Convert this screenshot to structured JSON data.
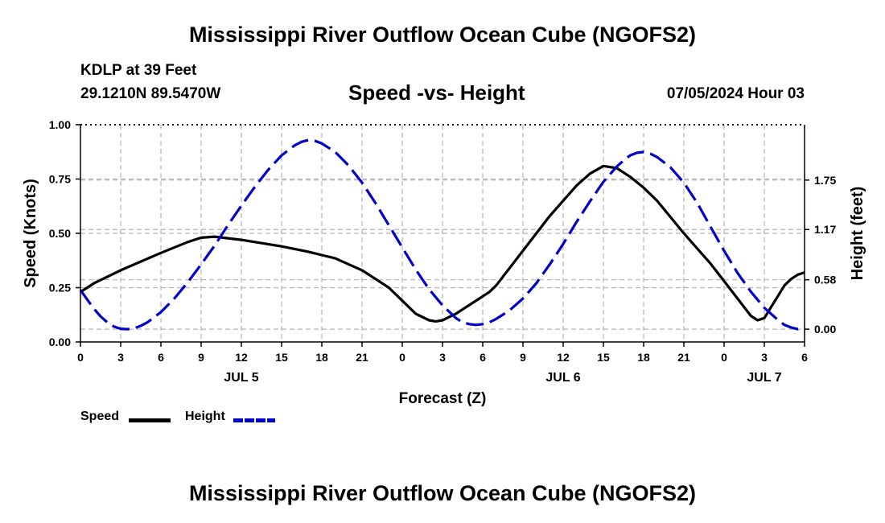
{
  "page": {
    "title_top": "Mississippi River Outflow Ocean Cube (NGOFS2)",
    "title_bottom": "Mississippi River Outflow Ocean Cube (NGOFS2)",
    "station": "KDLP at 39 Feet",
    "coords": "29.1210N  89.5470W",
    "subtitle": "Speed -vs- Height",
    "datetime": "07/05/2024 Hour 03"
  },
  "chart_data": {
    "type": "line",
    "xlabel": "Forecast (Z)",
    "ylabel_left": "Speed (Knots)",
    "ylabel_right": "Height (feet)",
    "x_range": [
      0,
      54
    ],
    "ylim_left": [
      0,
      1.0
    ],
    "ylim_right": [
      -0.15,
      2.4
    ],
    "grid": true,
    "x_tick_values": [
      0,
      3,
      6,
      9,
      12,
      15,
      18,
      21,
      24,
      27,
      30,
      33,
      36,
      39,
      42,
      45,
      48,
      51,
      54
    ],
    "x_tick_labels": [
      "0",
      "3",
      "6",
      "9",
      "12",
      "15",
      "18",
      "21",
      "0",
      "3",
      "6",
      "9",
      "12",
      "15",
      "18",
      "21",
      "0",
      "3",
      "6"
    ],
    "day_labels": [
      {
        "x": 12,
        "label": "JUL 5"
      },
      {
        "x": 36,
        "label": "JUL 6"
      },
      {
        "x": 51,
        "label": "JUL 7"
      }
    ],
    "left_ticks": [
      {
        "value": 0.0,
        "label": "0.00"
      },
      {
        "value": 0.25,
        "label": "0.25"
      },
      {
        "value": 0.5,
        "label": "0.50"
      },
      {
        "value": 0.75,
        "label": "0.75"
      },
      {
        "value": 1.0,
        "label": "1.00"
      }
    ],
    "right_ticks": [
      {
        "value": 0.0,
        "label": "0.00"
      },
      {
        "value": 0.58,
        "label": "0.58"
      },
      {
        "value": 1.17,
        "label": "1.17"
      },
      {
        "value": 1.75,
        "label": "1.75"
      }
    ],
    "legend": [
      {
        "name": "Speed",
        "color": "#000000",
        "dash": false
      },
      {
        "name": "Height",
        "color": "#0000cc",
        "dash": true
      }
    ],
    "series": [
      {
        "name": "Speed",
        "axis": "left",
        "color": "#000000",
        "points": [
          [
            0,
            0.23
          ],
          [
            1,
            0.27
          ],
          [
            3,
            0.33
          ],
          [
            6,
            0.41
          ],
          [
            8,
            0.46
          ],
          [
            9,
            0.48
          ],
          [
            10,
            0.485
          ],
          [
            12,
            0.47
          ],
          [
            15,
            0.44
          ],
          [
            17,
            0.415
          ],
          [
            18,
            0.4
          ],
          [
            19,
            0.385
          ],
          [
            21,
            0.33
          ],
          [
            22,
            0.29
          ],
          [
            23,
            0.25
          ],
          [
            24,
            0.19
          ],
          [
            25,
            0.13
          ],
          [
            26,
            0.1
          ],
          [
            26.5,
            0.095
          ],
          [
            27,
            0.1
          ],
          [
            28,
            0.13
          ],
          [
            29,
            0.17
          ],
          [
            30,
            0.21
          ],
          [
            30.5,
            0.23
          ],
          [
            31,
            0.26
          ],
          [
            33,
            0.42
          ],
          [
            35,
            0.58
          ],
          [
            37,
            0.72
          ],
          [
            38,
            0.775
          ],
          [
            39,
            0.81
          ],
          [
            40,
            0.8
          ],
          [
            41,
            0.76
          ],
          [
            42,
            0.71
          ],
          [
            43,
            0.65
          ],
          [
            45,
            0.5
          ],
          [
            47,
            0.36
          ],
          [
            49,
            0.2
          ],
          [
            50,
            0.12
          ],
          [
            50.5,
            0.1
          ],
          [
            51,
            0.11
          ],
          [
            51.5,
            0.16
          ],
          [
            52,
            0.21
          ],
          [
            52.5,
            0.26
          ],
          [
            53,
            0.29
          ],
          [
            53.5,
            0.31
          ],
          [
            54,
            0.32
          ]
        ]
      },
      {
        "name": "Height",
        "axis": "right",
        "color": "#0000cc",
        "points": [
          [
            0,
            0.46
          ],
          [
            0.5,
            0.35
          ],
          [
            1,
            0.24
          ],
          [
            1.5,
            0.15
          ],
          [
            2,
            0.08
          ],
          [
            2.5,
            0.03
          ],
          [
            3,
            0.005
          ],
          [
            3.5,
            0.0
          ],
          [
            4,
            0.01
          ],
          [
            4.5,
            0.04
          ],
          [
            5,
            0.08
          ],
          [
            6,
            0.2
          ],
          [
            7,
            0.36
          ],
          [
            8,
            0.55
          ],
          [
            9,
            0.76
          ],
          [
            10,
            0.98
          ],
          [
            11,
            1.22
          ],
          [
            12,
            1.45
          ],
          [
            13,
            1.67
          ],
          [
            14,
            1.87
          ],
          [
            15,
            2.04
          ],
          [
            16,
            2.16
          ],
          [
            16.5,
            2.2
          ],
          [
            17,
            2.22
          ],
          [
            17.5,
            2.21
          ],
          [
            18,
            2.18
          ],
          [
            19,
            2.08
          ],
          [
            20,
            1.92
          ],
          [
            21,
            1.72
          ],
          [
            22,
            1.48
          ],
          [
            23,
            1.22
          ],
          [
            24,
            0.96
          ],
          [
            25,
            0.7
          ],
          [
            26,
            0.47
          ],
          [
            27,
            0.28
          ],
          [
            28,
            0.13
          ],
          [
            28.5,
            0.08
          ],
          [
            29,
            0.06
          ],
          [
            29.5,
            0.05
          ],
          [
            30,
            0.06
          ],
          [
            30.5,
            0.08
          ],
          [
            31,
            0.12
          ],
          [
            32,
            0.22
          ],
          [
            33,
            0.36
          ],
          [
            34,
            0.54
          ],
          [
            35,
            0.76
          ],
          [
            36,
            1.0
          ],
          [
            37,
            1.26
          ],
          [
            38,
            1.5
          ],
          [
            39,
            1.73
          ],
          [
            40,
            1.91
          ],
          [
            40.5,
            1.98
          ],
          [
            41,
            2.04
          ],
          [
            41.5,
            2.07
          ],
          [
            42,
            2.08
          ],
          [
            42.5,
            2.06
          ],
          [
            43,
            2.02
          ],
          [
            44,
            1.9
          ],
          [
            45,
            1.72
          ],
          [
            46,
            1.48
          ],
          [
            47,
            1.2
          ],
          [
            48,
            0.92
          ],
          [
            49,
            0.66
          ],
          [
            50,
            0.44
          ],
          [
            51,
            0.25
          ],
          [
            52,
            0.11
          ],
          [
            52.5,
            0.05
          ],
          [
            53,
            0.02
          ],
          [
            53.5,
            0.0
          ],
          [
            54,
            0.02
          ]
        ]
      }
    ]
  }
}
